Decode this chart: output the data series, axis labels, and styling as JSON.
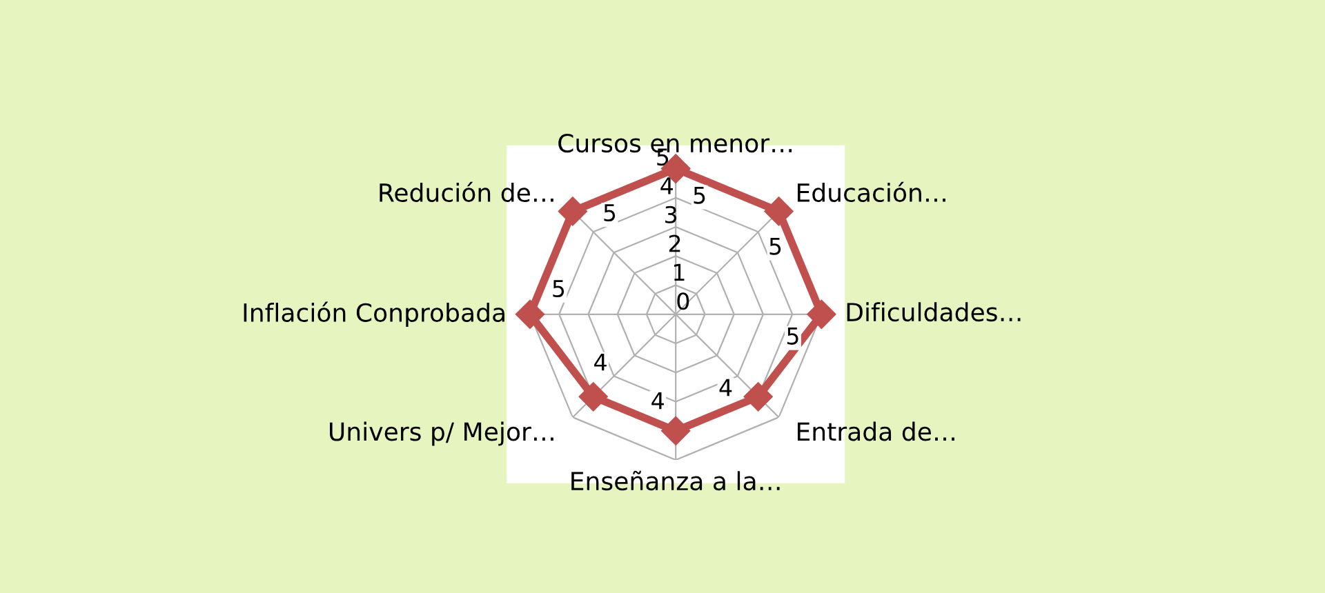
{
  "chart_data": {
    "type": "radar",
    "categories": [
      "Cursos en menor…",
      "Educación…",
      "Dificuldades…",
      "Entrada de…",
      "Enseñanza a la…",
      "Univers p/ Mejor…",
      "Inflación Conprobada",
      "Redución de…"
    ],
    "series": [
      {
        "color": "#c0504d",
        "values": [
          5,
          5,
          5,
          4,
          4,
          4,
          5,
          5
        ]
      }
    ],
    "ylim": [
      0,
      5
    ],
    "yticks": [
      0,
      1,
      2,
      3,
      4,
      5
    ],
    "marker": "diamond",
    "data_labels": true,
    "grid": true
  }
}
